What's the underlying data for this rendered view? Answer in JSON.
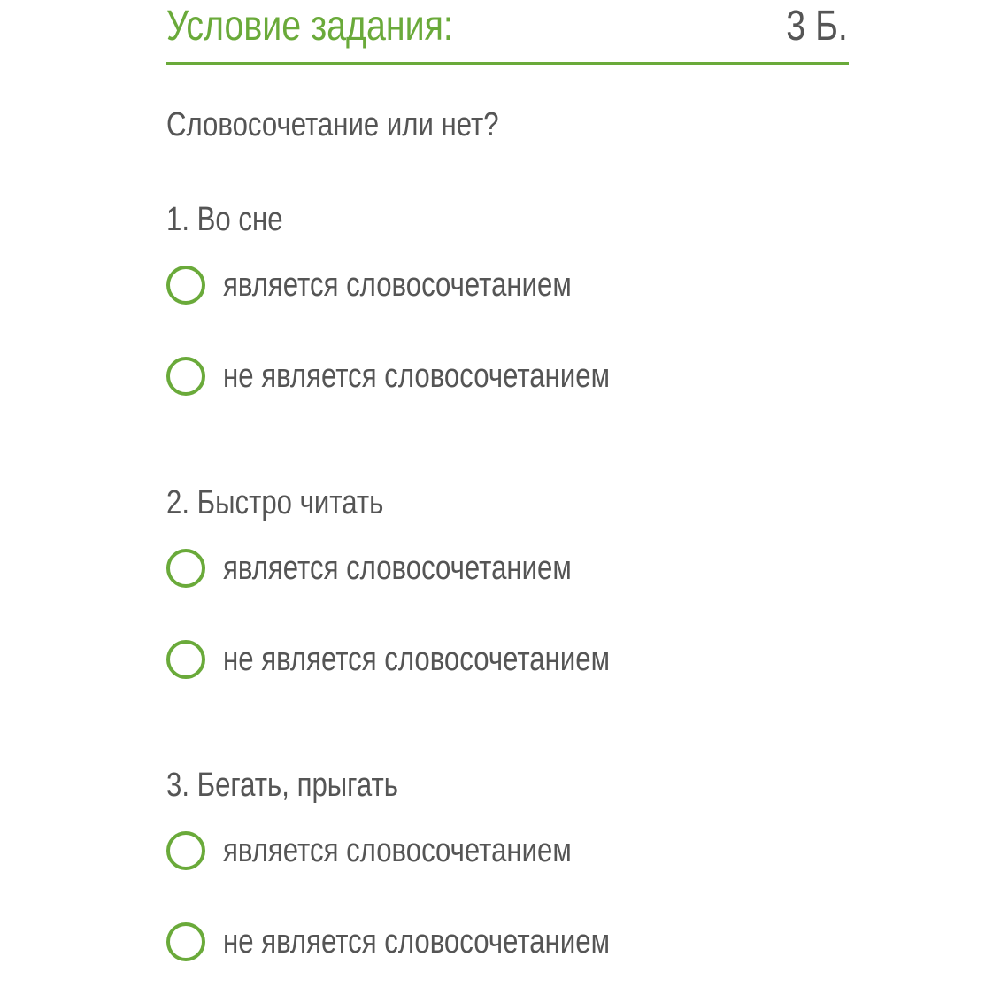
{
  "header": {
    "title": "Условие задания:",
    "points": "3 Б."
  },
  "question": "Словосочетание или нет?",
  "colors": {
    "accent": "#6aaa3a",
    "text": "#555555"
  },
  "items": [
    {
      "label": "1. Во сне",
      "options": [
        "является словосочетанием",
        "не является словосочетанием"
      ]
    },
    {
      "label": "2. Быстро читать",
      "options": [
        "является словосочетанием",
        "не является словосочетанием"
      ]
    },
    {
      "label": "3. Бегать, прыгать",
      "options": [
        "является словосочетанием",
        "не является словосочетанием"
      ]
    }
  ]
}
